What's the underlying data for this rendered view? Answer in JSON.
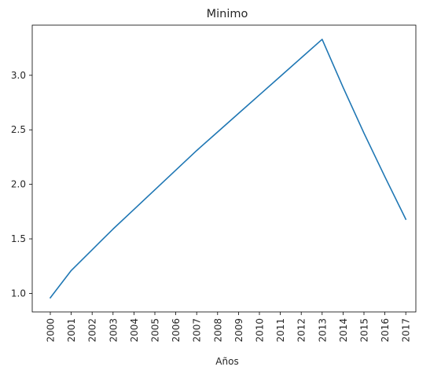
{
  "chart_data": {
    "type": "line",
    "title": "Minimo",
    "xlabel": "Años",
    "ylabel": "",
    "x": [
      "2000",
      "2001",
      "2002",
      "2003",
      "2004",
      "2005",
      "2006",
      "2007",
      "2008",
      "2009",
      "2010",
      "2011",
      "2012",
      "2013",
      "2014",
      "2015",
      "2016",
      "2017"
    ],
    "series": [
      {
        "name": "",
        "color": "#1f77b4",
        "values": [
          0.96,
          1.21,
          1.4,
          1.59,
          1.77,
          1.95,
          2.13,
          2.31,
          2.48,
          2.65,
          2.82,
          2.99,
          3.16,
          3.33,
          2.89,
          2.47,
          2.07,
          1.68
        ]
      }
    ],
    "ylim": [
      0.83,
      3.46
    ],
    "yticks": [
      "1.0",
      "1.5",
      "2.0",
      "2.5",
      "3.0"
    ],
    "ytick_values": [
      1.0,
      1.5,
      2.0,
      2.5,
      3.0
    ],
    "x_tick_rotation": "vertical",
    "grid": false,
    "legend": "none"
  }
}
